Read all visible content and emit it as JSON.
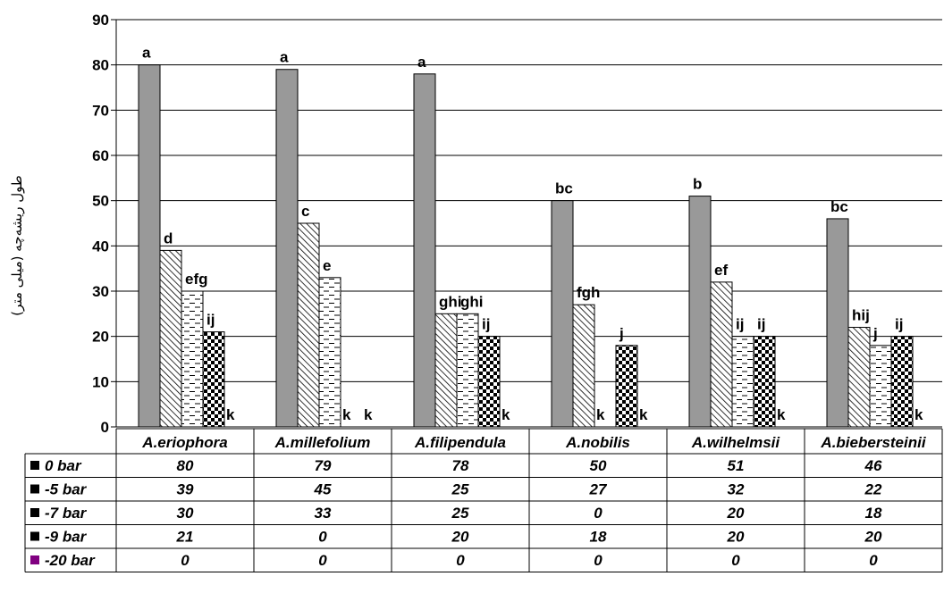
{
  "chart_data": {
    "type": "bar",
    "ylabel": "طول ریشه‌چه (میلی متر)",
    "ylim": [
      0,
      90
    ],
    "yticks": [
      0,
      10,
      20,
      30,
      40,
      50,
      60,
      70,
      80,
      90
    ],
    "grid": true,
    "categories": [
      "A.eriophora",
      "A.millefolium",
      "A.filipendula",
      "A.nobilis",
      "A.wilhelmsii",
      "A.biebersteinii"
    ],
    "series": [
      {
        "name": "0 bar",
        "pattern": "solid-gray",
        "values": [
          80,
          79,
          78,
          50,
          51,
          46
        ],
        "letters": [
          "a",
          "a",
          "a",
          "bc",
          "b",
          "bc"
        ]
      },
      {
        "name": "-5 bar",
        "pattern": "diagonal",
        "values": [
          39,
          45,
          25,
          27,
          32,
          22
        ],
        "letters": [
          "d",
          "c",
          "ghi",
          "fgh",
          "ef",
          "hij"
        ]
      },
      {
        "name": "-7 bar",
        "pattern": "dashes",
        "values": [
          30,
          33,
          25,
          0,
          20,
          18
        ],
        "letters": [
          "efg",
          "e",
          "ghi",
          "k",
          "ij",
          "j"
        ]
      },
      {
        "name": "-9 bar",
        "pattern": "checker",
        "values": [
          21,
          0,
          20,
          18,
          20,
          20
        ],
        "letters": [
          "ij",
          "k",
          "ij",
          "j",
          "ij",
          "ij"
        ]
      },
      {
        "name": "-20 bar",
        "pattern": "purple",
        "values": [
          0,
          0,
          0,
          0,
          0,
          0
        ],
        "letters": [
          "k",
          "k",
          "k",
          "k",
          "k",
          "k"
        ]
      }
    ],
    "colors": {
      "bar_fill": "#999999",
      "grid": "#000000",
      "legend_swatch": "#000000",
      "legend_swatch_20": "#800080"
    }
  }
}
